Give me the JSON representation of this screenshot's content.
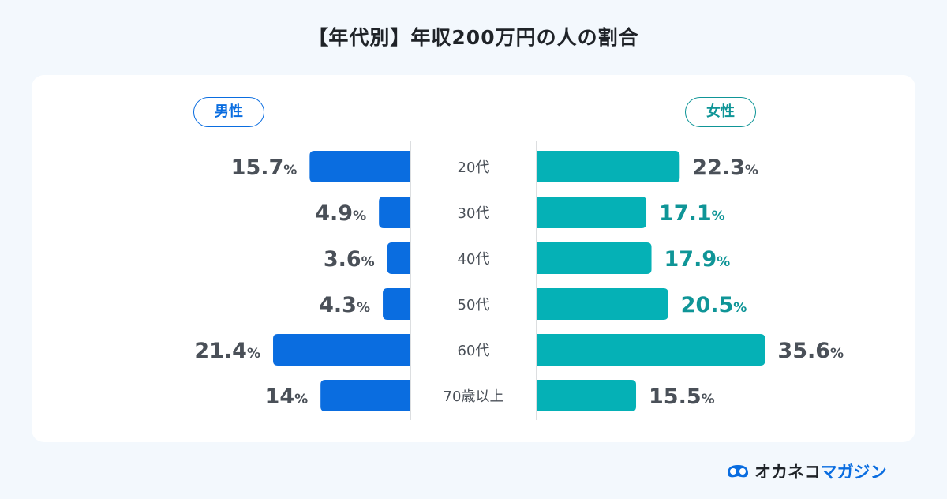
{
  "title": "【年代別】年収200万円の人の割合",
  "legend": {
    "male": "男性",
    "female": "女性"
  },
  "colors": {
    "male": "#0a6de0",
    "female": "#05b1b6",
    "label": "#4a5058",
    "label_alt": "#0f9597"
  },
  "logo": {
    "part1": "オカネコ",
    "part2": "マガジン"
  },
  "chart_data": {
    "type": "bar",
    "orientation": "horizontal-butterfly",
    "title": "【年代別】年収200万円の人の割合",
    "categories": [
      "20代",
      "30代",
      "40代",
      "50代",
      "60代",
      "70歳以上"
    ],
    "unit": "%",
    "series": [
      {
        "name": "男性",
        "values": [
          15.7,
          4.9,
          3.6,
          4.3,
          21.4,
          14
        ],
        "labels": [
          "15.7",
          "4.9",
          "3.6",
          "4.3",
          "21.4",
          "14"
        ],
        "highlight": [
          false,
          false,
          false,
          false,
          false,
          false
        ]
      },
      {
        "name": "女性",
        "values": [
          22.3,
          17.1,
          17.9,
          20.5,
          35.6,
          15.5
        ],
        "labels": [
          "22.3",
          "17.1",
          "17.9",
          "20.5",
          "35.6",
          "15.5"
        ],
        "highlight": [
          false,
          true,
          true,
          true,
          false,
          false
        ]
      }
    ]
  }
}
